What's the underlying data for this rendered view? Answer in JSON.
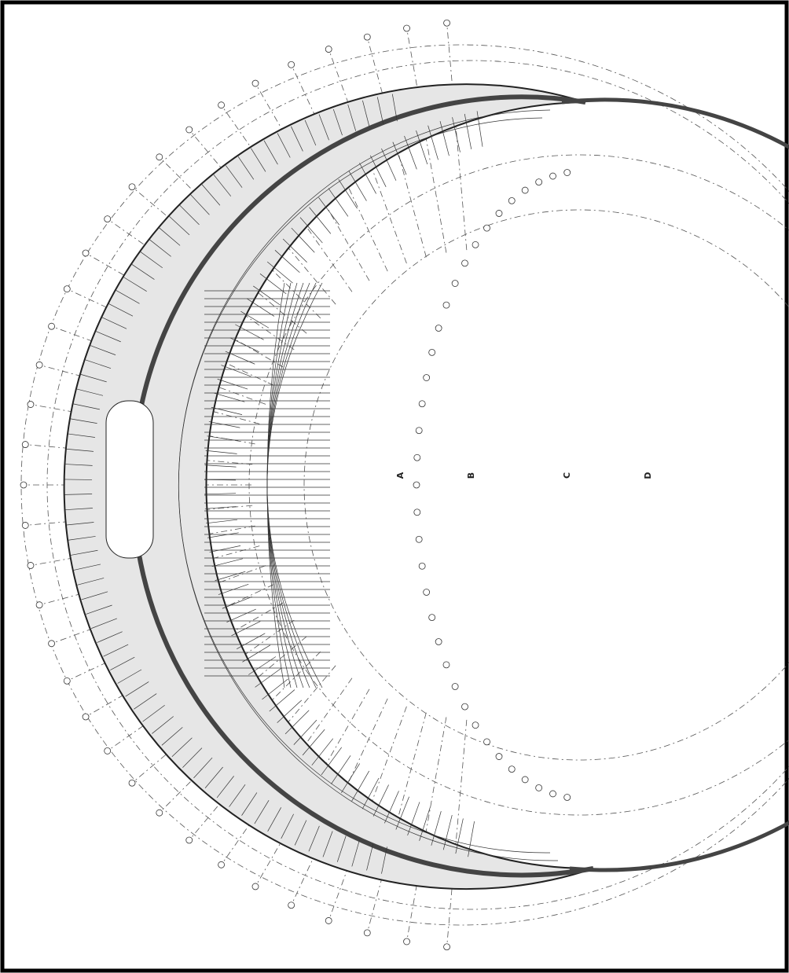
{
  "sections": [
    "A",
    "B",
    "C",
    "D"
  ]
}
